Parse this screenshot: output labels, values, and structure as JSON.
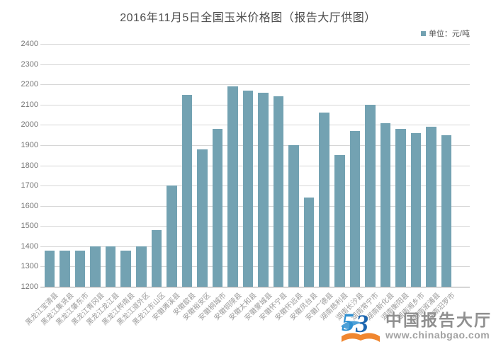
{
  "title": "2016年11月5日全国玉米价格图（报告大厅供图）",
  "legend": {
    "label": "单位：元/吨"
  },
  "chart_data": {
    "type": "bar",
    "title": "2016年11月5日全国玉米价格图（报告大厅供图）",
    "unit": "元/吨",
    "categories": [
      "黑龙江宝清县",
      "黑龙江集贤县",
      "黑龙江肇东市",
      "黑龙江青冈县",
      "黑龙江龙江县",
      "黑龙江桦南县",
      "黑龙江道外区",
      "黑龙江东山区",
      "安徽濉溪县",
      "安徽歙县",
      "安徽裕安区",
      "安徽桐城市",
      "安徽铜陵县",
      "安徽太和县",
      "安徽蒙城县",
      "安徽怀宁县",
      "安徽怀远县",
      "安徽凤台县",
      "安徽广德县",
      "湖南慈利县",
      "湖南长沙县",
      "湖南常宁市",
      "湖南新化县",
      "湖南衡阳县",
      "湖南湘乡市",
      "湖南溆浦县",
      "湖南汨罗市"
    ],
    "values": [
      1380,
      1380,
      1380,
      1400,
      1400,
      1380,
      1400,
      1480,
      1700,
      2150,
      1880,
      1980,
      2190,
      2170,
      2160,
      2140,
      1900,
      1640,
      2060,
      1850,
      1970,
      2100,
      2010,
      1980,
      1960,
      1990,
      1950
    ],
    "ylim": [
      1200,
      2400
    ],
    "ytick_step": 100,
    "grid": "horizontal",
    "legend_position": "top-right",
    "bar_color": "#73a2b2"
  },
  "watermark": {
    "name": "中国报告大厅",
    "url": "www.chinabgao.com"
  },
  "colors": {
    "bar": "#73a2b2",
    "gridline": "#d6d6d6",
    "axis_line": "#9e9e9e",
    "title_text": "#4f4f4f",
    "y_label": "#757575",
    "x_label": "#9b9b9b",
    "logo_blue": "#2e8fd0",
    "logo_dark_blue": "#1c66b0",
    "logo_orange": "#f0862f"
  }
}
